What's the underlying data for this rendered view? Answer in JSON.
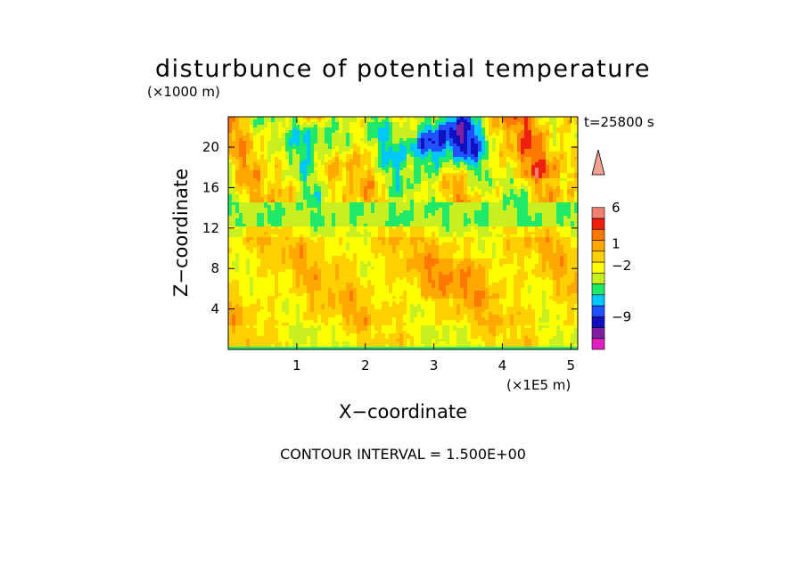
{
  "chart_data": {
    "type": "heatmap",
    "title": "disturbunce of potential temperature",
    "ylabel": "Z−coordinate",
    "xlabel": "X−coordinate",
    "y_unit": "(×1000 m)",
    "x_unit": "(×1E5 m)",
    "time_label": "t=25800 s",
    "footer": "CONTOUR INTERVAL = 1.500E+00",
    "xlim": [
      0,
      5.1
    ],
    "ylim": [
      0,
      23
    ],
    "x_ticks": [
      1,
      2,
      3,
      4,
      5
    ],
    "x_tick_labels": [
      "1",
      "2",
      "3",
      "4",
      "5"
    ],
    "y_ticks": [
      4,
      8,
      12,
      16,
      20
    ],
    "y_tick_labels": [
      "4",
      "8",
      "12",
      "16",
      "20"
    ],
    "colorbar": {
      "levels": [
        -13.5,
        -12,
        -10.5,
        -9,
        -7.5,
        -6,
        -4.5,
        -3,
        -1.5,
        0,
        1.5,
        3,
        4.5,
        6,
        7.5,
        9,
        10.5
      ],
      "colors": [
        "#e020c0",
        "#8020a0",
        "#1010c0",
        "#2050ff",
        "#00c8ff",
        "#20e868",
        "#c8f020",
        "#ffff00",
        "#ffd000",
        "#ffa800",
        "#ff7800",
        "#f02010",
        "#f08070",
        "#f0a090"
      ],
      "labels": [
        {
          "value": -9,
          "text": "−9"
        },
        {
          "value": -2,
          "text": "−2"
        },
        {
          "value": 1,
          "text": "1"
        },
        {
          "value": 6,
          "text": "6"
        }
      ],
      "extend": "max"
    }
  }
}
